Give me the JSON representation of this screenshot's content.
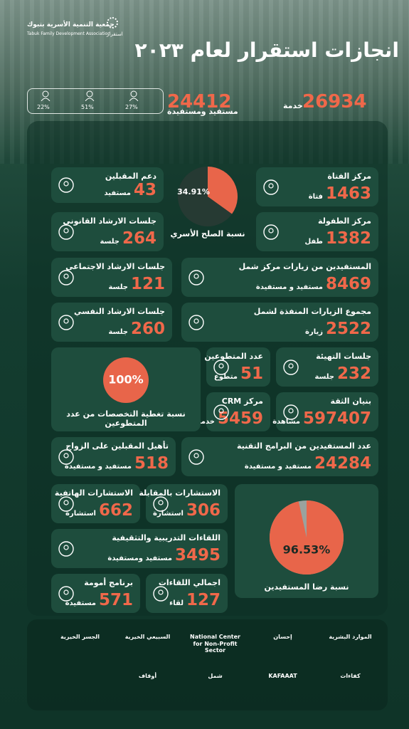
{
  "header": {
    "org_ar": "جمعية التنمية الأسرية بتبوك",
    "org_en": "Tabuk Family Development Association",
    "brand": "استقرار",
    "title": "انجازات استقرار لعام ٢٠٢٣"
  },
  "summary": {
    "services": {
      "number": 26934,
      "unit": "خدمة"
    },
    "beneficiaries": {
      "number": 24412,
      "unit": "مستفيد ومستفيدة"
    },
    "demographics": [
      "22%",
      "51%",
      "27%"
    ]
  },
  "tiles": [
    {
      "title": "مركز الفتاة",
      "number": 1463,
      "unit": "فتاة"
    },
    {
      "title": "مركز الطفولة",
      "number": 1382,
      "unit": "طفل"
    },
    {
      "title": "دعم المقبلين",
      "number": 43,
      "unit": "مستفيد"
    },
    {
      "title": "جلسات الارشاد القانوني",
      "number": 264,
      "unit": "جلسة"
    },
    {
      "title": "جلسات الارشاد الاجتماعي",
      "number": 121,
      "unit": "جلسة"
    },
    {
      "title": "المستفيدين من زيارات مركز شمل",
      "number": 8469,
      "unit": "مستفيد و مستفيدة"
    },
    {
      "title": "جلسات الارشاد النفسي",
      "number": 260,
      "unit": "جلسة"
    },
    {
      "title": "مجموع الزيارات المنفذة لشمل",
      "number": 2522,
      "unit": "زيارة"
    },
    {
      "title": "عدد المتطوعين",
      "number": 51,
      "unit": "متطوع"
    },
    {
      "title": "مركز CRM",
      "number": 5459,
      "unit": "خدمة"
    },
    {
      "title": "جلسات التهيئة",
      "number": 232,
      "unit": "جلسة"
    },
    {
      "title": "بنيان الثقة",
      "number": 597407,
      "unit": "مشاهدة"
    },
    {
      "title": "تأهيل المقبلين على الزواج",
      "number": 518,
      "unit": "مستفيد و مستفيدة"
    },
    {
      "title": "عدد المستفيدين من البرامج التقنية",
      "number": 24284,
      "unit": "مستفيد و مستفيدة"
    },
    {
      "title": "الاستشارات الهاتفية",
      "number": 662,
      "unit": "استشارة"
    },
    {
      "title": "الاستشارات بالمقابلة",
      "number": 306,
      "unit": "استشارة"
    },
    {
      "title": "اللقاءات التدريبية والتثقيفية",
      "number": 3495,
      "unit": "مستفيد ومستفيدة"
    },
    {
      "title": "برنامج أمومة",
      "number": 571,
      "unit": "مستفيدة"
    },
    {
      "title": "اجمالي اللقاءات",
      "number": 127,
      "unit": "لقاء"
    }
  ],
  "pies": [
    {
      "value": 34.91,
      "label": "34.91%",
      "caption": "نسبة الصلح الأسري"
    },
    {
      "value": 100,
      "label": "100%",
      "caption": "نسبة تغطية التخصصات من عدد المتطوعين"
    },
    {
      "value": 96.53,
      "label": "96.53%",
      "caption": "نسبة رضا المستفيدين"
    }
  ],
  "partners": [
    "الموارد البشرية",
    "إحسان",
    "National Center for Non-Profit Sector",
    "السبيعي الخيرية",
    "الجسر الخيرية",
    "كفاءات",
    "KAFAAAT",
    "شمل",
    "أوقاف"
  ]
}
